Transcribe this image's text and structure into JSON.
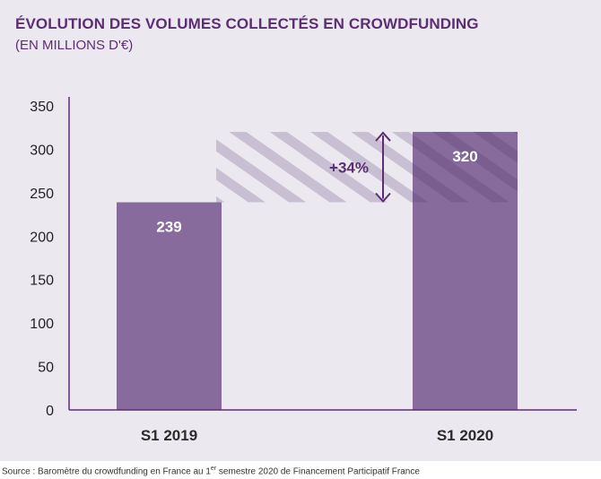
{
  "title": "ÉVOLUTION DES VOLUMES COLLECTÉS EN CROWDFUNDING",
  "subtitle": "(EN MILLIONS D'€)",
  "source": {
    "prefix": "Source : Baromètre du crowdfunding en France au 1",
    "superscript": "er",
    "suffix": " semestre 2020 de Financement Participatif France"
  },
  "colors": {
    "bar": "#876b9d",
    "bar_bottom": "#7e6294",
    "axis": "#5c2d73",
    "text_dark": "#2b2b2b",
    "hatch": "#c9bfd3",
    "background": "#ece8ef"
  },
  "chart_data": {
    "type": "bar",
    "categories": [
      "S1 2019",
      "S1 2020"
    ],
    "values": [
      239,
      320
    ],
    "data_labels": [
      "239",
      "320"
    ],
    "yticks": [
      0,
      50,
      100,
      150,
      200,
      250,
      300,
      350
    ],
    "ylim": [
      0,
      350
    ],
    "annotation": "+34%",
    "xlabel": "",
    "ylabel": "",
    "grid": false
  }
}
